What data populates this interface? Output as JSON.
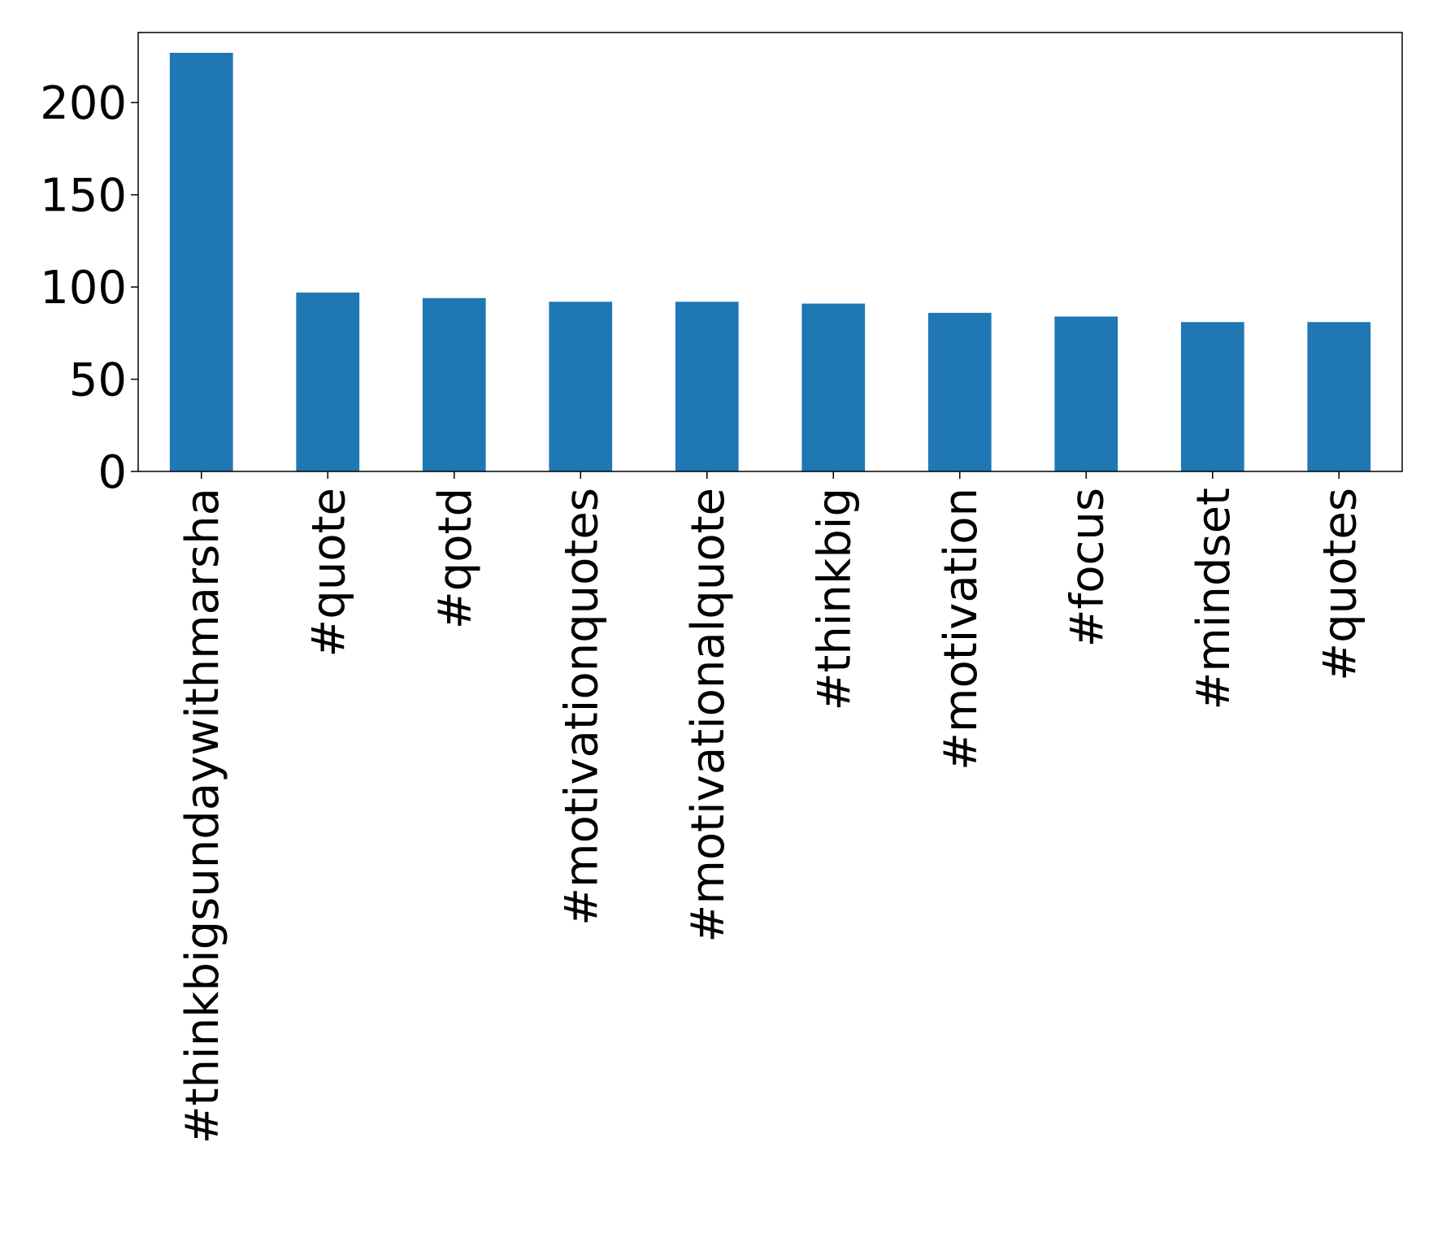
{
  "chart_data": {
    "type": "bar",
    "title": "",
    "xlabel": "",
    "ylabel": "",
    "categories": [
      "#thinkbigsundaywithmarsha",
      "#quote",
      "#qotd",
      "#motivationquotes",
      "#motivationalquote",
      "#thinkbig",
      "#motivation",
      "#focus",
      "#mindset",
      "#quotes"
    ],
    "values": [
      227,
      97,
      94,
      92,
      92,
      91,
      86,
      84,
      81,
      81
    ],
    "ylim": [
      0,
      238
    ],
    "yticks": [
      0,
      50,
      100,
      150,
      200
    ],
    "bar_color": "#1f77b4",
    "grid": false,
    "legend": "none"
  }
}
